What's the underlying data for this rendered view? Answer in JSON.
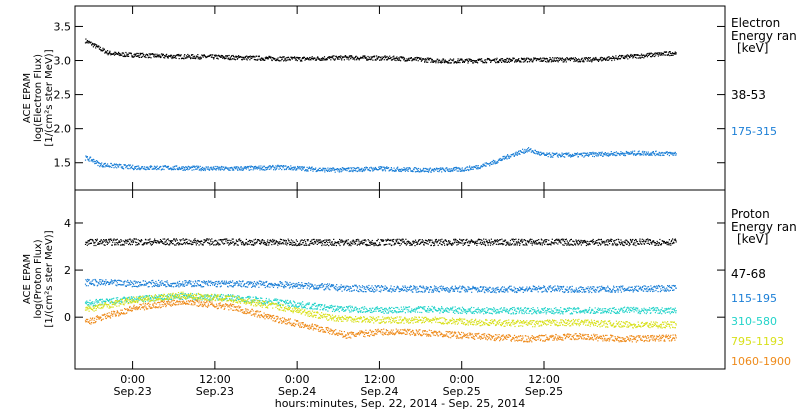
{
  "chart_data": [
    {
      "type": "scatter",
      "panel": "electron",
      "ylabel_lines": [
        "ACE EPAM",
        "log(Electron Flux)",
        "[1/(cm²s ster MeV)]"
      ],
      "ylim": [
        1.1,
        3.8
      ],
      "yticks": [
        1.5,
        2.0,
        2.5,
        3.0,
        3.5
      ],
      "ytick_labels": [
        "1.5",
        "2.0",
        "2.5",
        "3.0",
        "3.5"
      ],
      "legend_title": [
        "Electron",
        "Energy ran",
        "[keV]"
      ],
      "series": [
        {
          "name": "38-53",
          "color": "#000000",
          "x": [
            -0.29,
            -0.25,
            -0.2,
            -0.15,
            -0.1,
            0,
            0.2,
            0.5,
            0.8,
            1.0,
            1.3,
            1.6,
            1.9,
            2.2,
            2.5,
            2.8,
            3.0,
            3.2,
            3.3
          ],
          "y": [
            3.3,
            3.25,
            3.18,
            3.12,
            3.1,
            3.09,
            3.07,
            3.06,
            3.04,
            3.03,
            3.05,
            3.04,
            3.0,
            3.01,
            3.02,
            3.02,
            3.06,
            3.1,
            3.12
          ]
        },
        {
          "name": "175-315",
          "color": "#1a7ed6",
          "x": [
            -0.29,
            -0.25,
            -0.2,
            0,
            0.3,
            0.6,
            0.9,
            1.2,
            1.5,
            1.8,
            2.0,
            2.1,
            2.2,
            2.3,
            2.4,
            2.5,
            2.7,
            2.9,
            3.1,
            3.3
          ],
          "y": [
            1.58,
            1.55,
            1.48,
            1.44,
            1.43,
            1.42,
            1.44,
            1.4,
            1.42,
            1.4,
            1.41,
            1.45,
            1.52,
            1.62,
            1.7,
            1.62,
            1.62,
            1.64,
            1.65,
            1.64
          ]
        }
      ]
    },
    {
      "type": "scatter",
      "panel": "proton",
      "ylabel_lines": [
        "ACE EPAM",
        "log(Proton Flux)",
        "[1/(cm²s ster MeV)]"
      ],
      "ylim": [
        -2.2,
        5.4
      ],
      "yticks": [
        0,
        2,
        4
      ],
      "ytick_labels": [
        "0",
        "2",
        "4"
      ],
      "legend_title": [
        "Proton",
        "Energy ran",
        "[keV]"
      ],
      "series": [
        {
          "name": "47-68",
          "color": "#000000",
          "x": [
            -0.29,
            0,
            0.5,
            1.0,
            1.5,
            2.0,
            2.5,
            3.0,
            3.3
          ],
          "y": [
            3.2,
            3.22,
            3.22,
            3.2,
            3.2,
            3.2,
            3.21,
            3.2,
            3.22
          ]
        },
        {
          "name": "115-195",
          "color": "#1a7ed6",
          "x": [
            -0.29,
            0,
            0.4,
            0.8,
            1.0,
            1.3,
            1.6,
            1.9,
            2.2,
            2.5,
            2.8,
            3.0,
            3.3
          ],
          "y": [
            1.5,
            1.45,
            1.45,
            1.42,
            1.38,
            1.25,
            1.22,
            1.22,
            1.2,
            1.22,
            1.2,
            1.22,
            1.25
          ]
        },
        {
          "name": "310-580",
          "color": "#22d3c9",
          "x": [
            -0.29,
            0,
            0.3,
            0.6,
            0.9,
            1.2,
            1.5,
            1.8,
            2.1,
            2.4,
            2.7,
            3.0,
            3.3
          ],
          "y": [
            0.6,
            0.78,
            0.9,
            0.85,
            0.65,
            0.4,
            0.32,
            0.35,
            0.3,
            0.3,
            0.3,
            0.32,
            0.3
          ]
        },
        {
          "name": "795-1193",
          "color": "#d8e01a",
          "x": [
            -0.29,
            0,
            0.3,
            0.6,
            0.9,
            1.2,
            1.5,
            1.8,
            2.1,
            2.4,
            2.7,
            3.0,
            3.3
          ],
          "y": [
            0.35,
            0.75,
            0.95,
            0.8,
            0.45,
            0.0,
            -0.1,
            -0.1,
            -0.2,
            -0.25,
            -0.2,
            -0.3,
            -0.3
          ]
        },
        {
          "name": "1060-1900",
          "color": "#ee8a1a",
          "x": [
            -0.29,
            0,
            0.3,
            0.6,
            0.9,
            1.1,
            1.3,
            1.5,
            1.8,
            2.1,
            2.4,
            2.7,
            3.0,
            3.3
          ],
          "y": [
            -0.2,
            0.4,
            0.7,
            0.45,
            -0.1,
            -0.4,
            -0.75,
            -0.6,
            -0.65,
            -0.8,
            -0.9,
            -0.8,
            -0.9,
            -0.85
          ]
        }
      ]
    }
  ],
  "x_axis": {
    "xlabel": "hours:minutes, Sep. 22, 2014 - Sep. 25, 2014",
    "xlim": [
      -0.35,
      3.6
    ],
    "ticks": [
      {
        "value": 0.0,
        "time": "0:00",
        "date": "Sep.23"
      },
      {
        "value": 0.5,
        "time": "12:00",
        "date": "Sep.23"
      },
      {
        "value": 1.0,
        "time": "0:00",
        "date": "Sep.24"
      },
      {
        "value": 1.5,
        "time": "12:00",
        "date": "Sep.24"
      },
      {
        "value": 2.0,
        "time": "0:00",
        "date": "Sep.25"
      },
      {
        "value": 2.5,
        "time": "12:00",
        "date": "Sep.25"
      }
    ]
  }
}
